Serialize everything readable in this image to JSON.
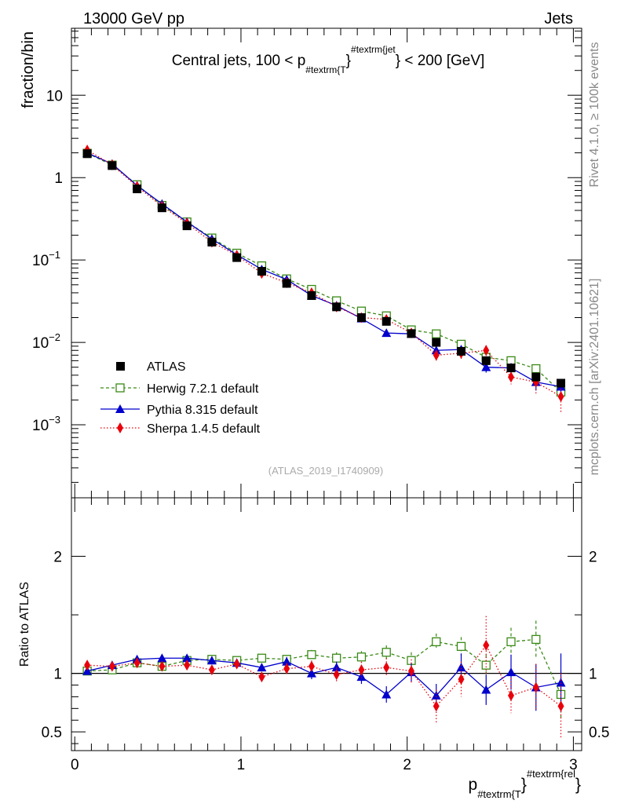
{
  "header": {
    "left": "13000 GeV pp",
    "right": "Jets"
  },
  "side_text": {
    "upper": "Rivet 4.1.0, ≥ 100k events",
    "lower": "mcplots.cern.ch [arXiv:2401.10621]"
  },
  "chart_data": [
    {
      "type": "scatter",
      "role": "main",
      "title_parts": {
        "before": "Central jets, 100 < p",
        "sub": "#textrm{T",
        "mid": "}",
        "sup": "#textrm{jet",
        "after": "} < 200 [GeV]"
      },
      "ylabel": "fraction/bin",
      "yscale": "log",
      "ylim": [
        0.00013,
        65
      ],
      "xlim": [
        -0.02,
        3.05
      ],
      "ytick_labels": [
        {
          "value": 10,
          "base": "10",
          "exp": ""
        },
        {
          "value": 1,
          "base": "1",
          "exp": ""
        },
        {
          "value": 0.1,
          "base": "10",
          "exp": "−1"
        },
        {
          "value": 0.01,
          "base": "10",
          "exp": "−2"
        },
        {
          "value": 0.001,
          "base": "10",
          "exp": "−3"
        }
      ],
      "watermark": "(ATLAS_2019_I1740909)",
      "x": [
        0.075,
        0.225,
        0.375,
        0.525,
        0.675,
        0.825,
        0.975,
        1.125,
        1.275,
        1.425,
        1.575,
        1.725,
        1.875,
        2.025,
        2.175,
        2.325,
        2.475,
        2.625,
        2.775,
        2.925
      ],
      "series": [
        {
          "name": "ATLAS",
          "label": "ATLAS",
          "color": "#000000",
          "marker": "square-filled",
          "values": [
            1.95,
            1.4,
            0.73,
            0.43,
            0.26,
            0.165,
            0.107,
            0.073,
            0.052,
            0.037,
            0.027,
            0.02,
            0.018,
            0.0128,
            0.01,
            0.0078,
            0.006,
            0.0049,
            0.0038,
            0.0032
          ]
        },
        {
          "name": "Herwig",
          "label": "Herwig 7.2.1 default",
          "color": "#3a8a16",
          "marker": "square-open",
          "line": "dashed",
          "values": [
            1.98,
            1.42,
            0.82,
            0.46,
            0.29,
            0.185,
            0.121,
            0.085,
            0.059,
            0.044,
            0.032,
            0.024,
            0.021,
            0.0142,
            0.0127,
            0.0095,
            0.0066,
            0.006,
            0.0048,
            0.0025
          ],
          "errors": [
            0.02,
            0.02,
            0.01,
            0.006,
            0.004,
            0.003,
            0.002,
            0.0014,
            0.001,
            0.0008,
            0.0006,
            0.0005,
            0.0005,
            0.0004,
            0.0004,
            0.0003,
            0.0003,
            0.0003,
            0.0006,
            0.0003
          ]
        },
        {
          "name": "Pythia",
          "label": "Pythia 8.315 default",
          "color": "#0000cc",
          "marker": "triangle",
          "line": "solid",
          "values": [
            1.99,
            1.47,
            0.8,
            0.48,
            0.29,
            0.18,
            0.116,
            0.077,
            0.058,
            0.037,
            0.028,
            0.0195,
            0.013,
            0.0127,
            0.008,
            0.0082,
            0.005,
            0.0049,
            0.0033,
            0.0029
          ],
          "errors": [
            0.02,
            0.02,
            0.01,
            0.006,
            0.004,
            0.003,
            0.002,
            0.0015,
            0.0012,
            0.0009,
            0.0008,
            0.0008,
            0.0008,
            0.0008,
            0.0009,
            0.0009,
            0.0007,
            0.0007,
            0.0007,
            0.0006
          ]
        },
        {
          "name": "Sherpa",
          "label": "Sherpa 1.4.5 default",
          "color": "#e8000b",
          "marker": "diamond",
          "line": "dotted",
          "values": [
            2.16,
            1.43,
            0.78,
            0.45,
            0.28,
            0.165,
            0.114,
            0.069,
            0.053,
            0.04,
            0.027,
            0.02,
            0.019,
            0.013,
            0.007,
            0.0074,
            0.008,
            0.0038,
            0.0033,
            0.0022
          ],
          "errors": [
            0.03,
            0.02,
            0.012,
            0.007,
            0.005,
            0.003,
            0.002,
            0.0015,
            0.0012,
            0.001,
            0.0008,
            0.0008,
            0.0009,
            0.0008,
            0.0011,
            0.0011,
            0.0012,
            0.0007,
            0.0009,
            0.0008
          ]
        }
      ]
    },
    {
      "type": "line",
      "role": "ratio",
      "ylabel": "Ratio to ATLAS",
      "ylim": [
        0.34,
        2.5
      ],
      "ytick_labels_left": [
        "0.5",
        "1",
        "2"
      ],
      "ytick_labels_right": [
        "0.5",
        "1",
        "2"
      ],
      "xlabel_parts": {
        "base": "p",
        "sub": "#textrm{T",
        "mid": "}",
        "sup": "#textrm{rel",
        "after": "}"
      },
      "xtick_labels": [
        "0",
        "1",
        "2",
        "3"
      ],
      "x": [
        0.075,
        0.225,
        0.375,
        0.525,
        0.675,
        0.825,
        0.975,
        1.125,
        1.275,
        1.425,
        1.575,
        1.725,
        1.875,
        2.025,
        2.175,
        2.325,
        2.475,
        2.625,
        2.775,
        2.925
      ],
      "series": [
        {
          "name": "Herwig",
          "values": [
            1.02,
            1.03,
            1.09,
            1.06,
            1.11,
            1.12,
            1.11,
            1.13,
            1.12,
            1.16,
            1.13,
            1.14,
            1.18,
            1.11,
            1.27,
            1.23,
            1.07,
            1.27,
            1.29,
            0.82
          ],
          "errors": [
            0.01,
            0.01,
            0.01,
            0.01,
            0.015,
            0.015,
            0.02,
            0.02,
            0.03,
            0.04,
            0.05,
            0.05,
            0.06,
            0.07,
            0.07,
            0.08,
            0.09,
            0.12,
            0.16,
            0.2
          ]
        },
        {
          "name": "Pythia",
          "values": [
            1.02,
            1.07,
            1.12,
            1.13,
            1.13,
            1.11,
            1.09,
            1.05,
            1.1,
            1.0,
            1.05,
            0.97,
            0.82,
            1.01,
            0.81,
            1.05,
            0.86,
            1.01,
            0.88,
            0.92
          ],
          "errors": [
            0.01,
            0.01,
            0.01,
            0.012,
            0.015,
            0.02,
            0.02,
            0.03,
            0.04,
            0.05,
            0.05,
            0.06,
            0.07,
            0.08,
            0.1,
            0.12,
            0.13,
            0.15,
            0.2,
            0.25
          ]
        },
        {
          "name": "Sherpa",
          "values": [
            1.07,
            1.06,
            1.09,
            1.06,
            1.07,
            1.03,
            1.08,
            0.97,
            1.04,
            1.06,
            0.99,
            1.03,
            1.05,
            1.02,
            0.72,
            0.95,
            1.24,
            0.81,
            0.88,
            0.72
          ],
          "errors": [
            0.012,
            0.012,
            0.014,
            0.016,
            0.02,
            0.025,
            0.03,
            0.04,
            0.05,
            0.05,
            0.06,
            0.07,
            0.08,
            0.1,
            0.14,
            0.15,
            0.25,
            0.15,
            0.2,
            0.28
          ]
        }
      ]
    }
  ]
}
